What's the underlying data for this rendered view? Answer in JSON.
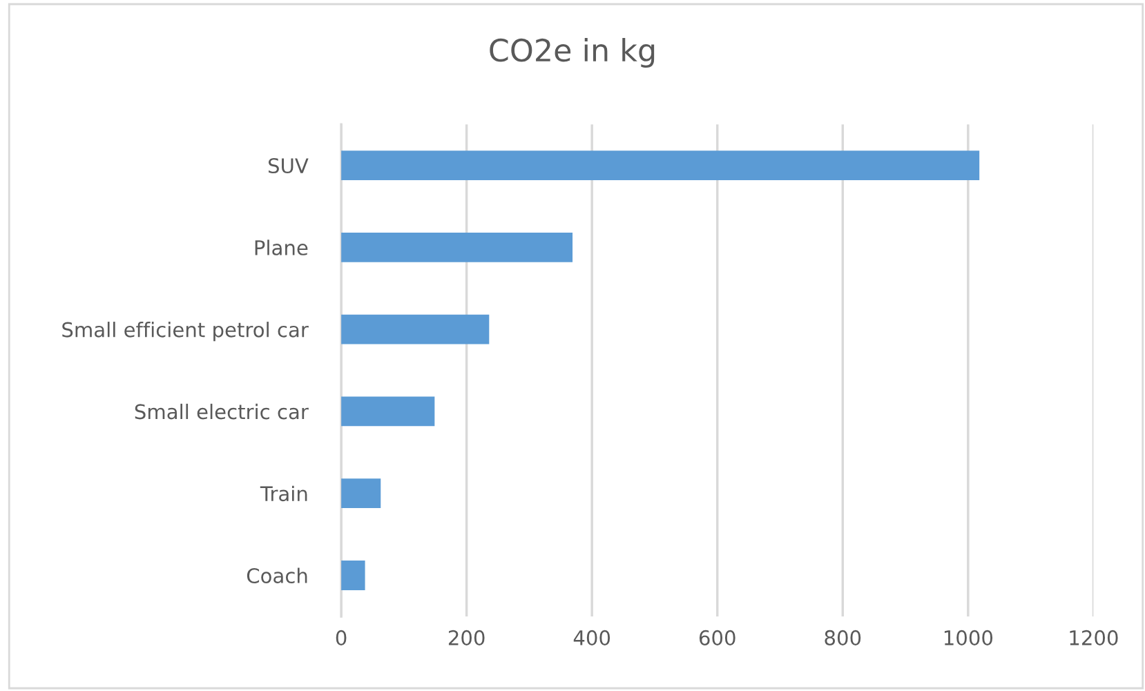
{
  "chart_data": {
    "type": "bar",
    "orientation": "horizontal",
    "title": "CO2e in kg",
    "categories": [
      "SUV",
      "Plane",
      "Small efficient petrol car",
      "Small electric car",
      "Train",
      "Coach"
    ],
    "values": [
      1018,
      369,
      236,
      149,
      63,
      38
    ],
    "color": "#5b9bd5",
    "xlim": [
      0,
      1200
    ],
    "xticks": [
      0,
      200,
      400,
      600,
      800,
      1000,
      1200
    ],
    "grid": "x",
    "legend": false
  }
}
